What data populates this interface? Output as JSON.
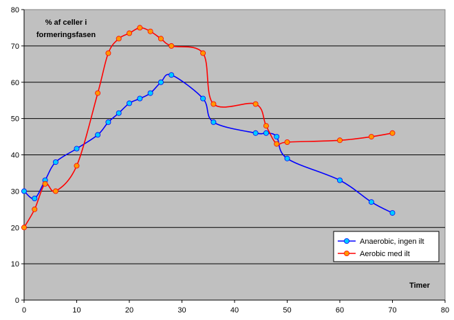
{
  "chart_data": {
    "type": "line",
    "title": "",
    "xlabel": "",
    "ylabel": "",
    "annotations": {
      "y_title_line1": "% af celler i",
      "y_title_line2": "formeringsfasen",
      "x_title": "Timer"
    },
    "xlim": [
      0,
      80
    ],
    "ylim": [
      0,
      80
    ],
    "x_ticks": [
      "0",
      "10",
      "20",
      "30",
      "40",
      "50",
      "60",
      "70",
      "80"
    ],
    "y_ticks": [
      "0",
      "10",
      "20",
      "30",
      "40",
      "50",
      "60",
      "70",
      "80"
    ],
    "grid": "horizontal",
    "legend_position": "lower-right",
    "background_color": "#c0c0c0",
    "series": [
      {
        "name": "Anaerobic, ingen ilt",
        "line_color": "#0000ff",
        "marker_color": "#00ccff",
        "x": [
          0,
          2,
          4,
          6,
          10,
          14,
          16,
          18,
          20,
          22,
          24,
          26,
          28,
          34,
          36,
          44,
          46,
          48,
          50,
          60,
          66,
          70
        ],
        "y": [
          30,
          28,
          33,
          38,
          41.7,
          45.5,
          49,
          51.5,
          54.2,
          55.5,
          57,
          60,
          62,
          55.5,
          49,
          46,
          46,
          45,
          39,
          33,
          27,
          24
        ]
      },
      {
        "name": "Aerobic med ilt",
        "line_color": "#ff0000",
        "marker_color": "#ff9900",
        "x": [
          0,
          2,
          4,
          6,
          10,
          14,
          16,
          18,
          20,
          22,
          24,
          26,
          28,
          34,
          36,
          44,
          46,
          48,
          50,
          60,
          66,
          70
        ],
        "y": [
          20,
          25,
          32,
          30,
          37,
          57,
          68,
          72,
          73.5,
          75,
          74,
          72,
          70,
          68,
          54,
          54,
          48,
          43,
          43.5,
          44,
          45,
          46
        ]
      }
    ]
  }
}
